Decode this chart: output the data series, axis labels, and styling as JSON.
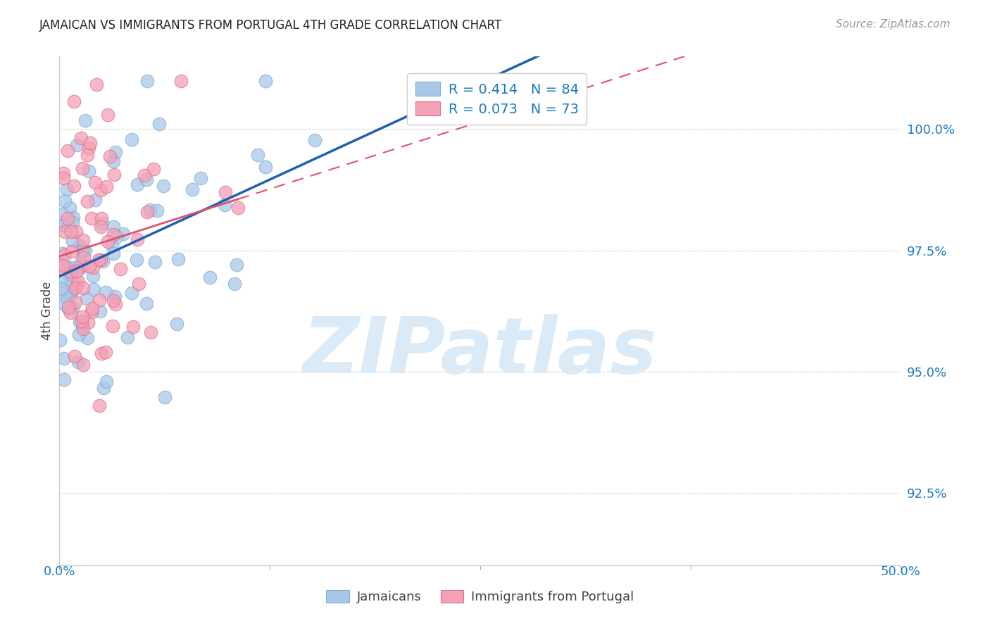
{
  "title": "JAMAICAN VS IMMIGRANTS FROM PORTUGAL 4TH GRADE CORRELATION CHART",
  "source": "Source: ZipAtlas.com",
  "ylabel": "4th Grade",
  "yticks": [
    92.5,
    95.0,
    97.5,
    100.0
  ],
  "xlim": [
    0.0,
    50.0
  ],
  "ylim": [
    91.0,
    101.5
  ],
  "blue_R": 0.414,
  "blue_N": 84,
  "pink_R": 0.073,
  "pink_N": 73,
  "blue_color": "#a8c8e8",
  "pink_color": "#f4a0b5",
  "blue_edge_color": "#7aafd4",
  "pink_edge_color": "#e07090",
  "blue_line_color": "#2060b0",
  "pink_line_color": "#e05070",
  "background_color": "#ffffff",
  "grid_color": "#cccccc",
  "tick_color": "#aaaaaa",
  "label_color": "#1a7abf",
  "text_color": "#444444",
  "title_color": "#222222",
  "source_color": "#999999",
  "watermark_color": "#daeaf7",
  "seed_blue": 42,
  "seed_pink": 123
}
